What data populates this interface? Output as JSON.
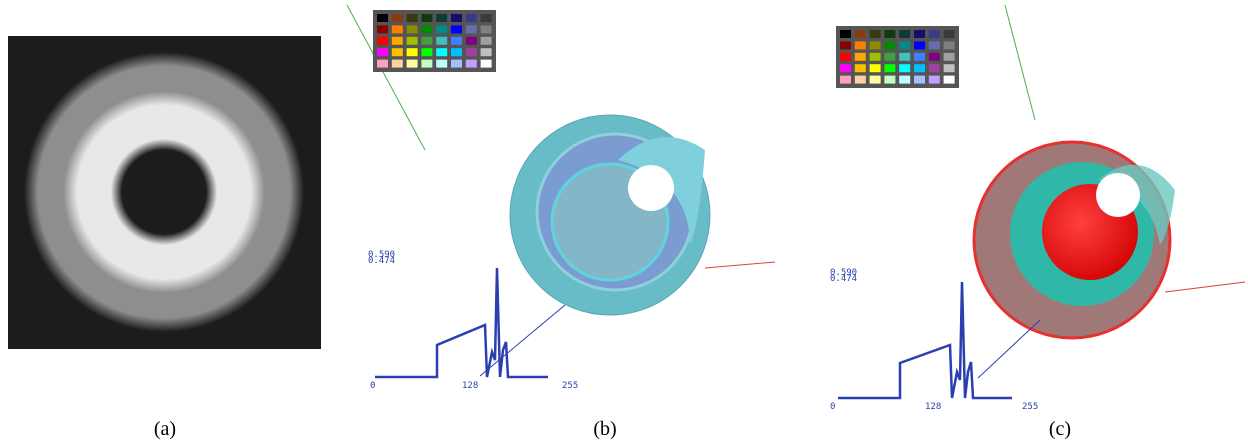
{
  "panels": [
    {
      "caption": "(a)"
    },
    {
      "caption": "(b)",
      "plot": {
        "y_labels": [
          "0.590",
          "0.474"
        ],
        "x_labels": [
          "0",
          "128",
          "255"
        ]
      }
    },
    {
      "caption": "(c)",
      "plot": {
        "y_labels": [
          "0.590",
          "0.474"
        ],
        "x_labels": [
          "0",
          "128",
          "255"
        ]
      }
    }
  ]
}
